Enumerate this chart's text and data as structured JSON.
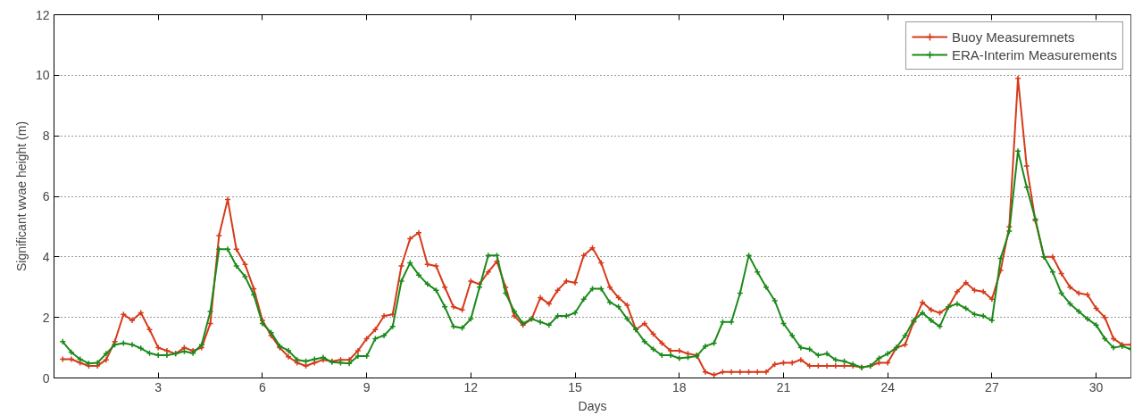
{
  "chart_data": {
    "type": "line",
    "xlabel": "Days",
    "ylabel": "Significant wvae height (m)",
    "x": [
      0.25,
      0.5,
      0.75,
      1,
      1.25,
      1.5,
      1.75,
      2,
      2.25,
      2.5,
      2.75,
      3,
      3.25,
      3.5,
      3.75,
      4,
      4.25,
      4.5,
      4.75,
      5,
      5.25,
      5.5,
      5.75,
      6,
      6.25,
      6.5,
      6.75,
      7,
      7.25,
      7.5,
      7.75,
      8,
      8.25,
      8.5,
      8.75,
      9,
      9.25,
      9.5,
      9.75,
      10,
      10.25,
      10.5,
      10.75,
      11,
      11.25,
      11.5,
      11.75,
      12,
      12.25,
      12.5,
      12.75,
      13,
      13.25,
      13.5,
      13.75,
      14,
      14.25,
      14.5,
      14.75,
      15,
      15.25,
      15.5,
      15.75,
      16,
      16.25,
      16.5,
      16.75,
      17,
      17.25,
      17.5,
      17.75,
      18,
      18.25,
      18.5,
      18.75,
      19,
      19.25,
      19.5,
      19.75,
      20,
      20.25,
      20.5,
      20.75,
      21,
      21.25,
      21.5,
      21.75,
      22,
      22.25,
      22.5,
      22.75,
      23,
      23.25,
      23.5,
      23.75,
      24,
      24.25,
      24.5,
      24.75,
      25,
      25.25,
      25.5,
      25.75,
      26,
      26.25,
      26.5,
      26.75,
      27,
      27.25,
      27.5,
      27.75,
      28,
      28.25,
      28.5,
      28.75,
      29,
      29.25,
      29.5,
      29.75,
      30,
      30.25,
      30.5,
      30.75,
      31
    ],
    "series": [
      {
        "name": "Buoy Measuremnets",
        "color": "#d63a1a",
        "marker": "cross",
        "values": [
          0.62,
          0.62,
          0.5,
          0.4,
          0.4,
          0.6,
          1.2,
          2.1,
          1.9,
          2.15,
          1.6,
          1.0,
          0.9,
          0.8,
          1.0,
          0.9,
          1.0,
          1.8,
          4.7,
          5.9,
          4.25,
          3.75,
          2.95,
          1.9,
          1.4,
          1.0,
          0.7,
          0.5,
          0.4,
          0.5,
          0.6,
          0.55,
          0.6,
          0.6,
          0.9,
          1.3,
          1.6,
          2.05,
          2.1,
          3.7,
          4.6,
          4.8,
          3.75,
          3.7,
          3.0,
          2.35,
          2.25,
          3.2,
          3.1,
          3.5,
          3.85,
          3.0,
          2.05,
          1.75,
          1.95,
          2.65,
          2.45,
          2.9,
          3.2,
          3.15,
          4.05,
          4.3,
          3.8,
          3.0,
          2.65,
          2.4,
          1.6,
          1.8,
          1.45,
          1.15,
          0.9,
          0.9,
          0.8,
          0.75,
          0.2,
          0.1,
          0.2,
          0.2,
          0.2,
          0.2,
          0.2,
          0.2,
          0.45,
          0.5,
          0.5,
          0.6,
          0.4,
          0.4,
          0.4,
          0.4,
          0.4,
          0.4,
          0.35,
          0.4,
          0.5,
          0.5,
          1.0,
          1.1,
          1.85,
          2.5,
          2.25,
          2.15,
          2.35,
          2.85,
          3.15,
          2.9,
          2.85,
          2.6,
          3.55,
          5.0,
          9.9,
          7.0,
          5.2,
          4.0,
          4.0,
          3.45,
          3.0,
          2.8,
          2.75,
          2.3,
          2.0,
          1.3,
          1.1,
          1.1
        ]
      },
      {
        "name": "ERA-Interim Measurements",
        "color": "#1a8a1a",
        "marker": "cross",
        "values": [
          1.2,
          0.85,
          0.62,
          0.48,
          0.5,
          0.8,
          1.1,
          1.15,
          1.1,
          0.98,
          0.82,
          0.75,
          0.75,
          0.8,
          0.88,
          0.82,
          1.1,
          2.2,
          4.25,
          4.25,
          3.7,
          3.35,
          2.75,
          1.8,
          1.5,
          1.05,
          0.9,
          0.6,
          0.55,
          0.62,
          0.68,
          0.52,
          0.5,
          0.48,
          0.72,
          0.72,
          1.3,
          1.4,
          1.7,
          3.2,
          3.8,
          3.4,
          3.1,
          2.9,
          2.35,
          1.7,
          1.65,
          1.95,
          3.0,
          4.05,
          4.05,
          2.8,
          2.2,
          1.8,
          1.95,
          1.85,
          1.75,
          2.05,
          2.05,
          2.15,
          2.6,
          2.95,
          2.95,
          2.5,
          2.35,
          1.95,
          1.6,
          1.2,
          0.95,
          0.75,
          0.75,
          0.65,
          0.68,
          0.72,
          1.05,
          1.15,
          1.85,
          1.85,
          2.8,
          4.05,
          3.5,
          3.0,
          2.55,
          1.8,
          1.4,
          1.0,
          0.95,
          0.75,
          0.8,
          0.6,
          0.55,
          0.45,
          0.35,
          0.4,
          0.65,
          0.8,
          1.0,
          1.4,
          1.9,
          2.15,
          1.9,
          1.7,
          2.35,
          2.45,
          2.3,
          2.1,
          2.05,
          1.9,
          3.95,
          4.85,
          7.5,
          6.3,
          5.25,
          4.0,
          3.5,
          2.8,
          2.45,
          2.2,
          1.95,
          1.75,
          1.3,
          1.0,
          1.05,
          0.95
        ]
      }
    ],
    "xlim": [
      0,
      31
    ],
    "xticks": [
      3,
      6,
      9,
      12,
      15,
      18,
      21,
      24,
      27,
      30
    ],
    "ylim": [
      0,
      12
    ],
    "yticks": [
      0,
      2,
      4,
      6,
      8,
      10,
      12
    ],
    "grid": "y",
    "legend": "top right",
    "line_style": "solid"
  }
}
